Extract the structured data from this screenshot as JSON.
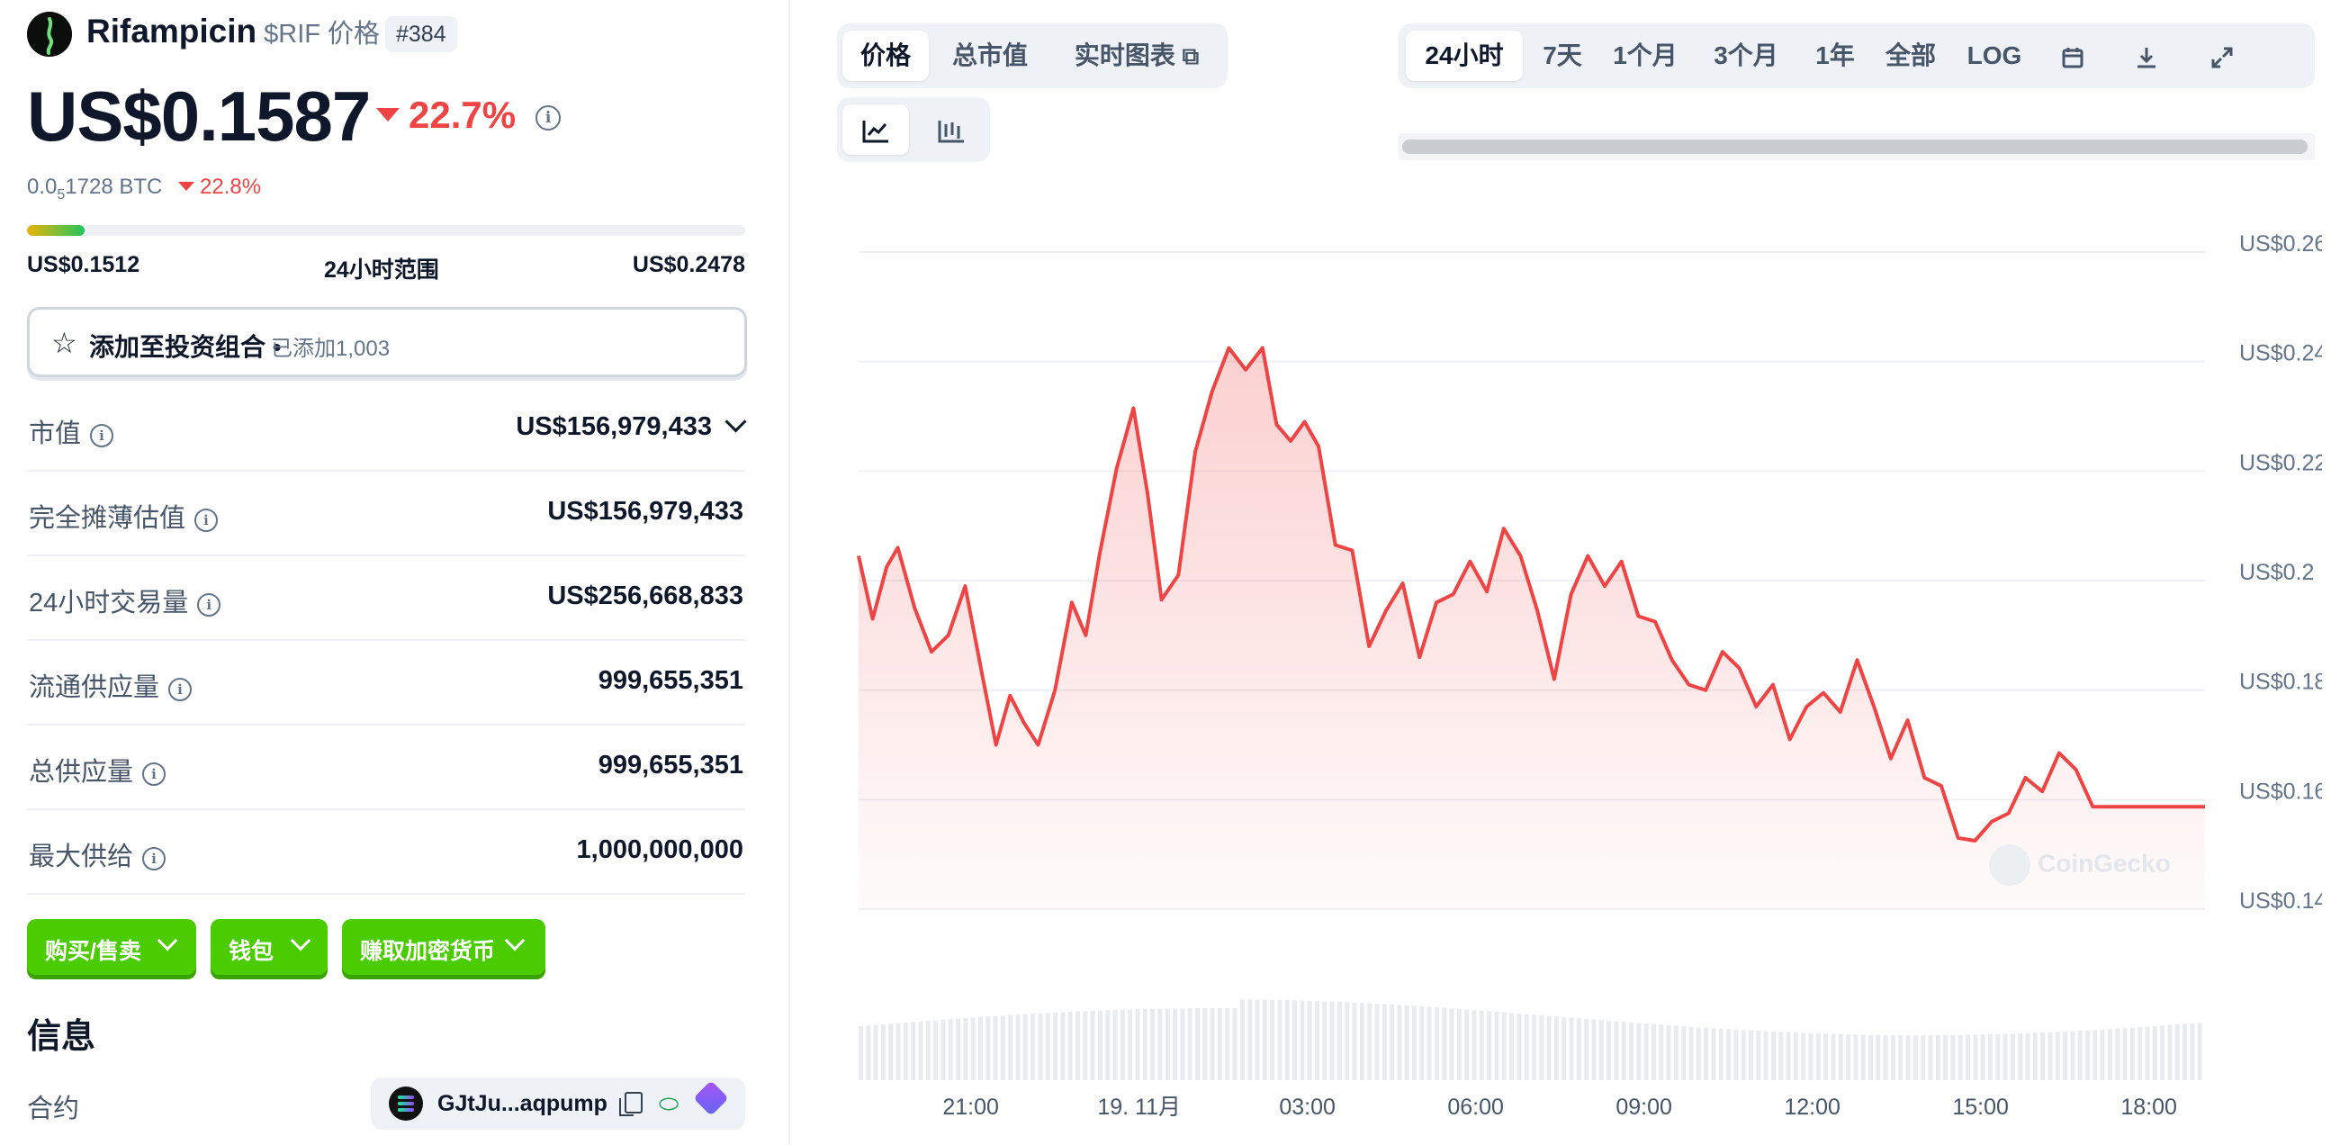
{
  "coin": {
    "name": "Rifampicin",
    "symbol": "$RIF 价格",
    "rank": "#384",
    "price": "US$0.1587",
    "change_24h": "22.7%",
    "btc_price_prefix": "0.0",
    "btc_price_sub": "5",
    "btc_price_suffix": "1728 BTC",
    "btc_change": "22.8%",
    "range_low": "US$0.1512",
    "range_label": "24小时范围",
    "range_high": "US$0.2478",
    "range_position": 0.08,
    "colors": {
      "up": "#4bcc00",
      "down": "#ef4444"
    }
  },
  "portfolio": {
    "label": "添加至投资组合",
    "separator": "•",
    "count_text": "已添加1,003"
  },
  "stats": [
    {
      "label": "市值",
      "value": "US$156,979,433"
    },
    {
      "label": "完全摊薄估值",
      "value": "US$156,979,433"
    },
    {
      "label": "24小时交易量",
      "value": "US$256,668,833"
    },
    {
      "label": "流通供应量",
      "value": "999,655,351"
    },
    {
      "label": "总供应量",
      "value": "999,655,351"
    },
    {
      "label": "最大供给",
      "value": "1,000,000,000"
    }
  ],
  "actions": {
    "buy_sell": "购买/售卖",
    "wallet": "钱包",
    "earn": "赚取加密货币"
  },
  "info": {
    "heading": "信息",
    "contract_label": "合约",
    "contract_address": "GJtJu...aqpump"
  },
  "chart_tabs": {
    "price": "价格",
    "market_cap": "总市值",
    "live_chart": "实时图表"
  },
  "time_tabs": {
    "h24": "24小时",
    "d7": "7天",
    "m1": "1个月",
    "m3": "3个月",
    "y1": "1年",
    "all": "全部",
    "log": "LOG"
  },
  "watermark": "CoinGecko",
  "chart_data": {
    "type": "area",
    "title": "",
    "xlabel": "",
    "ylabel": "",
    "line_color": "#ef4444",
    "y_ticks": [
      "US$0.26",
      "US$0.24",
      "US$0.22",
      "US$0.2",
      "US$0.18",
      "US$0.16",
      "US$0.14"
    ],
    "y_tick_values": [
      0.26,
      0.24,
      0.22,
      0.2,
      0.18,
      0.16,
      0.14
    ],
    "ylim": [
      0.14,
      0.26
    ],
    "x_ticks": [
      "21:00",
      "19. 11月",
      "03:00",
      "06:00",
      "09:00",
      "12:00",
      "15:00",
      "18:00"
    ],
    "x_tick_hours": [
      2.0,
      5.0,
      8.0,
      11.0,
      14.0,
      17.0,
      20.0,
      23.0
    ],
    "x_range_hours": [
      0,
      24
    ],
    "x_hours": [
      0,
      0.25,
      0.5,
      0.7,
      1.0,
      1.3,
      1.6,
      1.9,
      2.2,
      2.45,
      2.7,
      2.95,
      3.2,
      3.5,
      3.8,
      4.05,
      4.3,
      4.6,
      4.9,
      5.15,
      5.4,
      5.7,
      6.0,
      6.3,
      6.6,
      6.9,
      7.2,
      7.45,
      7.7,
      7.95,
      8.2,
      8.5,
      8.8,
      9.1,
      9.4,
      9.7,
      10.0,
      10.3,
      10.6,
      10.9,
      11.2,
      11.5,
      11.8,
      12.1,
      12.4,
      12.7,
      13.0,
      13.3,
      13.6,
      13.9,
      14.2,
      14.5,
      14.8,
      15.1,
      15.4,
      15.7,
      16.0,
      16.3,
      16.6,
      16.9,
      17.2,
      17.5,
      17.8,
      18.1,
      18.4,
      18.7,
      19.0,
      19.3,
      19.6,
      19.9,
      20.2,
      20.5,
      20.8,
      21.1,
      21.4,
      21.7,
      22.0,
      22.3,
      22.6,
      22.9,
      23.2,
      23.5,
      23.8,
      24.0
    ],
    "values": [
      0.2045,
      0.193,
      0.2025,
      0.206,
      0.195,
      0.187,
      0.19,
      0.199,
      0.183,
      0.17,
      0.179,
      0.174,
      0.17,
      0.18,
      0.196,
      0.19,
      0.205,
      0.2205,
      0.2315,
      0.216,
      0.1965,
      0.201,
      0.2235,
      0.2345,
      0.2425,
      0.2385,
      0.2425,
      0.2285,
      0.2255,
      0.229,
      0.2245,
      0.2065,
      0.2055,
      0.188,
      0.1945,
      0.1995,
      0.186,
      0.196,
      0.1975,
      0.2035,
      0.198,
      0.2095,
      0.2045,
      0.1945,
      0.182,
      0.1975,
      0.2045,
      0.199,
      0.2035,
      0.1935,
      0.1925,
      0.1855,
      0.181,
      0.18,
      0.187,
      0.184,
      0.177,
      0.181,
      0.171,
      0.177,
      0.1795,
      0.176,
      0.1855,
      0.177,
      0.1675,
      0.1745,
      0.164,
      0.1625,
      0.153,
      0.1525,
      0.156,
      0.1575,
      0.164,
      0.1615,
      0.1685,
      0.1655,
      0.1587,
      0.1587,
      0.1587,
      0.1587,
      0.1587,
      0.1587,
      0.1587,
      0.1587
    ]
  }
}
